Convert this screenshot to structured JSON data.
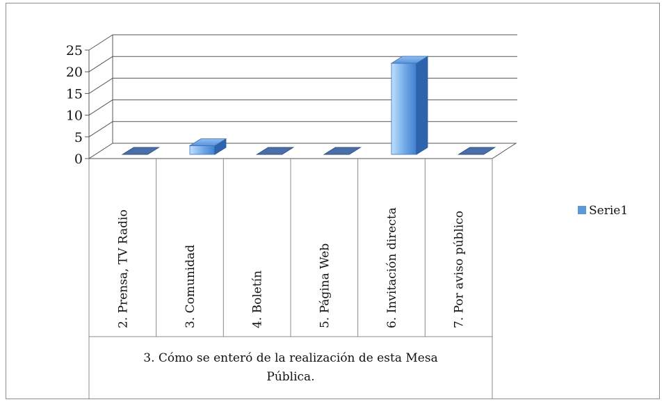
{
  "chart_data": {
    "type": "bar",
    "categories": [
      "2. Prensa, TV Radio",
      "3. Comunidad",
      "4. Boletín",
      "5. Página Web",
      "6. Invitación  directa",
      "7. Por aviso público"
    ],
    "series": [
      {
        "name": "Serie1",
        "values": [
          0,
          2,
          0,
          0,
          21,
          0
        ]
      }
    ],
    "group_label_lines": [
      "3.   Cómo se enteró  de la realización de esta Mesa",
      "Pública."
    ],
    "y_ticks": [
      "0",
      "5",
      "10",
      "15",
      "20",
      "25"
    ],
    "ylim": [
      0,
      25
    ],
    "legend_position": "right",
    "bar_color": "#5b9bd5",
    "grid": true,
    "three_d": true
  }
}
